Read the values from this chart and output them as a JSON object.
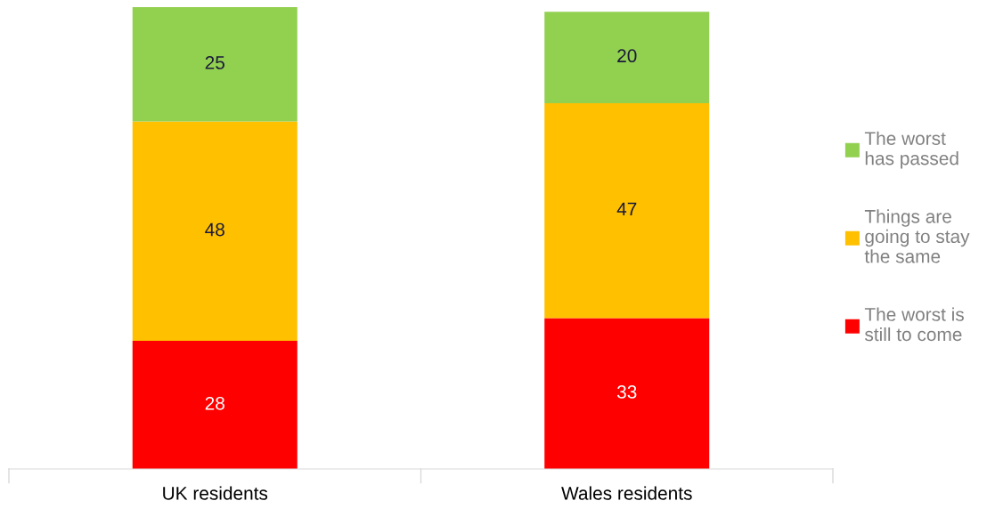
{
  "chart_data": {
    "type": "bar",
    "stacked": true,
    "categories": [
      "UK residents",
      "Wales residents"
    ],
    "series": [
      {
        "name": "The worst is\nstill to come",
        "color": "#ff0000",
        "values": [
          28,
          33
        ]
      },
      {
        "name": "Things are\ngoing to stay\nthe same",
        "color": "#ffc000",
        "values": [
          48,
          47
        ]
      },
      {
        "name": "The worst\nhas passed",
        "color": "#92d050",
        "values": [
          25,
          20
        ]
      }
    ],
    "data_labels": true,
    "legend": "right",
    "grid": false
  }
}
